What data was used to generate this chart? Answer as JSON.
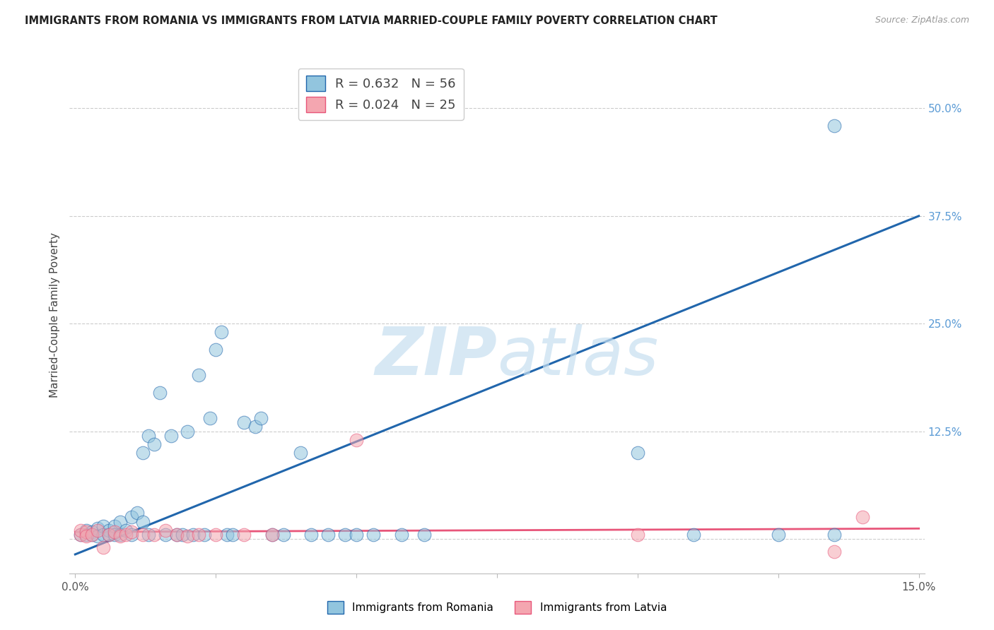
{
  "title": "IMMIGRANTS FROM ROMANIA VS IMMIGRANTS FROM LATVIA MARRIED-COUPLE FAMILY POVERTY CORRELATION CHART",
  "source": "Source: ZipAtlas.com",
  "ylabel": "Married-Couple Family Poverty",
  "xlim": [
    0.0,
    0.15
  ],
  "ylim": [
    -0.04,
    0.56
  ],
  "romania_color": "#92c5de",
  "latvia_color": "#f4a6b0",
  "romania_R": 0.632,
  "romania_N": 56,
  "latvia_R": 0.024,
  "latvia_N": 25,
  "romania_line_color": "#2166ac",
  "latvia_line_color": "#e8567a",
  "scatter_size": 180,
  "romania_x": [
    0.001,
    0.002,
    0.002,
    0.003,
    0.003,
    0.004,
    0.004,
    0.005,
    0.005,
    0.006,
    0.006,
    0.007,
    0.007,
    0.008,
    0.008,
    0.009,
    0.01,
    0.01,
    0.011,
    0.012,
    0.012,
    0.013,
    0.013,
    0.014,
    0.015,
    0.016,
    0.017,
    0.018,
    0.019,
    0.02,
    0.021,
    0.022,
    0.023,
    0.024,
    0.025,
    0.026,
    0.027,
    0.028,
    0.03,
    0.032,
    0.033,
    0.035,
    0.037,
    0.04,
    0.042,
    0.045,
    0.048,
    0.05,
    0.053,
    0.058,
    0.062,
    0.1,
    0.11,
    0.125,
    0.135,
    0.135
  ],
  "romania_y": [
    0.005,
    0.01,
    0.005,
    0.008,
    0.005,
    0.012,
    0.003,
    0.015,
    0.005,
    0.01,
    0.005,
    0.015,
    0.005,
    0.02,
    0.005,
    0.01,
    0.025,
    0.005,
    0.03,
    0.02,
    0.1,
    0.12,
    0.005,
    0.11,
    0.17,
    0.005,
    0.12,
    0.005,
    0.005,
    0.125,
    0.005,
    0.19,
    0.005,
    0.14,
    0.22,
    0.24,
    0.005,
    0.005,
    0.135,
    0.13,
    0.14,
    0.005,
    0.005,
    0.1,
    0.005,
    0.005,
    0.005,
    0.005,
    0.005,
    0.005,
    0.005,
    0.1,
    0.005,
    0.005,
    0.005,
    0.48
  ],
  "latvia_x": [
    0.001,
    0.001,
    0.002,
    0.002,
    0.003,
    0.004,
    0.005,
    0.006,
    0.007,
    0.008,
    0.009,
    0.01,
    0.012,
    0.014,
    0.016,
    0.018,
    0.02,
    0.022,
    0.025,
    0.03,
    0.035,
    0.05,
    0.1,
    0.135,
    0.14
  ],
  "latvia_y": [
    0.005,
    0.01,
    0.008,
    0.003,
    0.005,
    0.01,
    -0.01,
    0.005,
    0.008,
    0.003,
    0.005,
    0.008,
    0.005,
    0.005,
    0.01,
    0.005,
    0.003,
    0.005,
    0.005,
    0.005,
    0.005,
    0.115,
    0.005,
    -0.015,
    0.025
  ],
  "rom_line_x0": 0.0,
  "rom_line_y0": -0.018,
  "rom_line_x1": 0.15,
  "rom_line_y1": 0.375,
  "lat_line_x0": 0.0,
  "lat_line_y0": 0.008,
  "lat_line_x1": 0.15,
  "lat_line_y1": 0.012,
  "ytick_right_positions": [
    0.0,
    0.125,
    0.25,
    0.375,
    0.5
  ],
  "ytick_right_labels": [
    "",
    "12.5%",
    "25.0%",
    "37.5%",
    "50.0%"
  ],
  "xtick_positions": [
    0.0,
    0.025,
    0.05,
    0.075,
    0.1,
    0.125,
    0.15
  ],
  "xtick_labels": [
    "0.0%",
    "",
    "",
    "",
    "",
    "",
    "15.0%"
  ],
  "watermark_zip": "ZIP",
  "watermark_atlas": "atlas",
  "legend_romania": "R = 0.632   N = 56",
  "legend_latvia": "R = 0.024   N = 25",
  "bottom_legend_romania": "Immigrants from Romania",
  "bottom_legend_latvia": "Immigrants from Latvia"
}
